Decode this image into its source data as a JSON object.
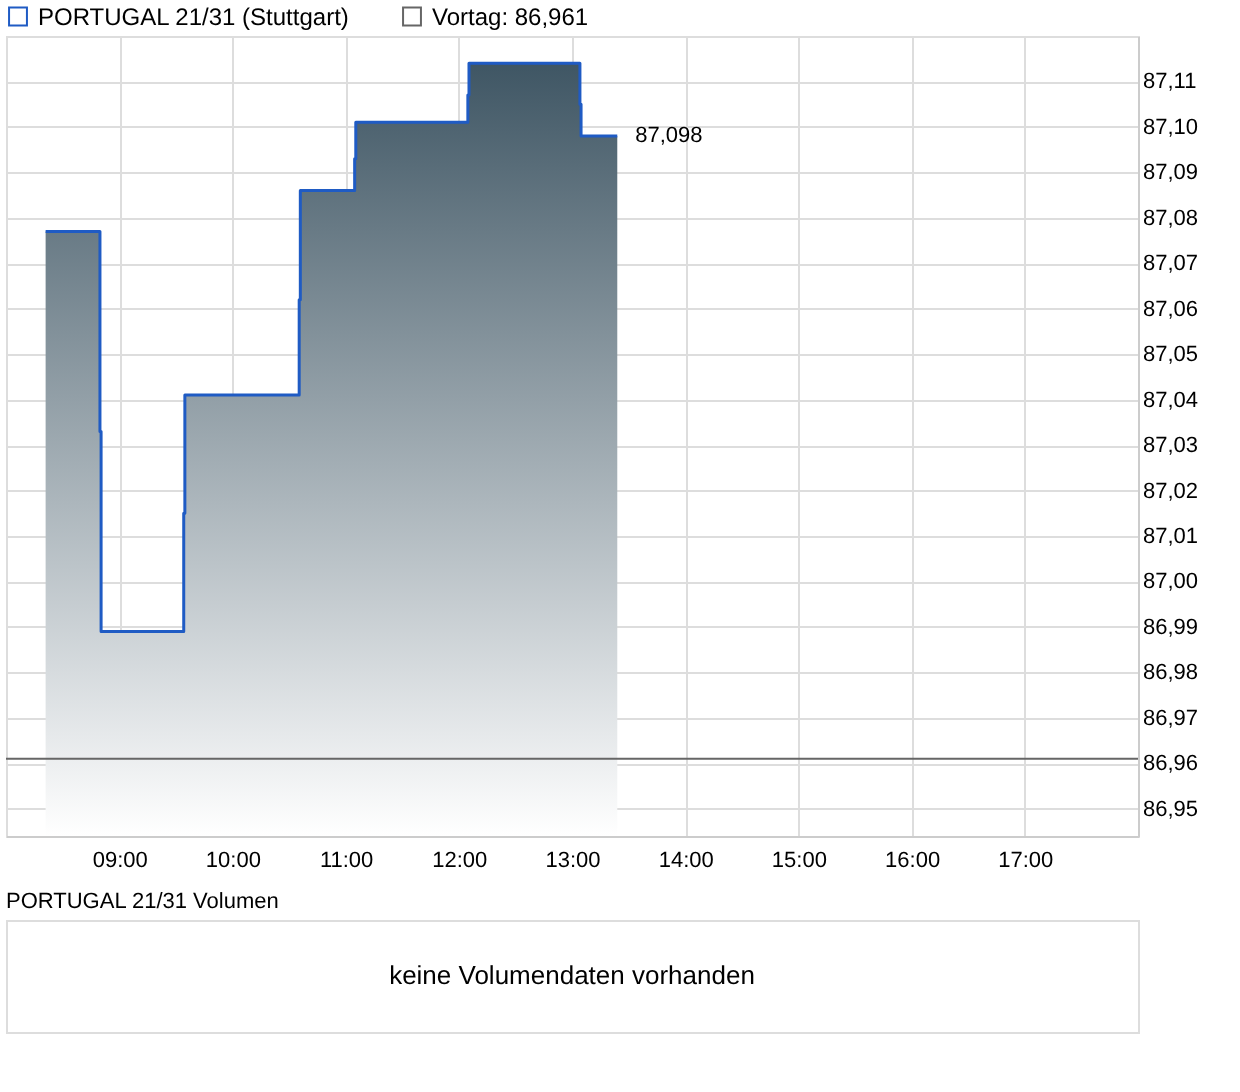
{
  "chart_data": [
    {
      "type": "area",
      "x": [
        8.35,
        8.83,
        8.83,
        8.84,
        8.84,
        9.57,
        9.57,
        9.58,
        9.58,
        10.59,
        10.59,
        10.6,
        10.6,
        11.08,
        11.08,
        11.09,
        11.09,
        12.08,
        12.08,
        12.09,
        12.09,
        13.07,
        13.07,
        13.08,
        13.08,
        13.4
      ],
      "series": [
        {
          "name": "PORTUGAL 21/31 (Stuttgart)",
          "color": "#1f5bc4",
          "values": [
            87.077,
            87.077,
            87.033,
            87.033,
            86.989,
            86.989,
            87.015,
            87.015,
            87.041,
            87.041,
            87.062,
            87.062,
            87.086,
            87.086,
            87.093,
            87.093,
            87.101,
            87.101,
            87.107,
            87.107,
            87.114,
            87.114,
            87.105,
            87.105,
            87.098,
            87.098
          ]
        }
      ],
      "xlim": [
        8,
        18
      ],
      "xticks": [
        {
          "value": 9,
          "label": "09:00"
        },
        {
          "value": 10,
          "label": "10:00"
        },
        {
          "value": 11,
          "label": "11:00"
        },
        {
          "value": 12,
          "label": "12:00"
        },
        {
          "value": 13,
          "label": "13:00"
        },
        {
          "value": 14,
          "label": "14:00"
        },
        {
          "value": 15,
          "label": "15:00"
        },
        {
          "value": 16,
          "label": "16:00"
        },
        {
          "value": 17,
          "label": "17:00"
        }
      ],
      "ylim": [
        86.944,
        87.12
      ],
      "yticks": [
        {
          "value": 86.95,
          "label": "86,95"
        },
        {
          "value": 86.96,
          "label": "86,96"
        },
        {
          "value": 86.97,
          "label": "86,97"
        },
        {
          "value": 86.98,
          "label": "86,98"
        },
        {
          "value": 86.99,
          "label": "86,99"
        },
        {
          "value": 87.0,
          "label": "87,00"
        },
        {
          "value": 87.01,
          "label": "87,01"
        },
        {
          "value": 87.02,
          "label": "87,02"
        },
        {
          "value": 87.03,
          "label": "87,03"
        },
        {
          "value": 87.04,
          "label": "87,04"
        },
        {
          "value": 87.05,
          "label": "87,05"
        },
        {
          "value": 87.06,
          "label": "87,06"
        },
        {
          "value": 87.07,
          "label": "87,07"
        },
        {
          "value": 87.08,
          "label": "87,08"
        },
        {
          "value": 87.09,
          "label": "87,09"
        },
        {
          "value": 87.1,
          "label": "87,10"
        },
        {
          "value": 87.11,
          "label": "87,11"
        }
      ],
      "ref_lines": [
        {
          "axis": "y",
          "value": 86.961,
          "label": "Vortag: 86,961",
          "color": "#666666"
        }
      ],
      "annotations": [
        {
          "text": "87,098",
          "x": 13.4,
          "y": 87.098
        }
      ],
      "grid": true,
      "legend": "top left",
      "marker": "none"
    },
    {
      "type": "other",
      "title": "PORTUGAL 21/31 Volumen",
      "annotations": [
        "keine Volumendaten vorhanden"
      ]
    }
  ]
}
